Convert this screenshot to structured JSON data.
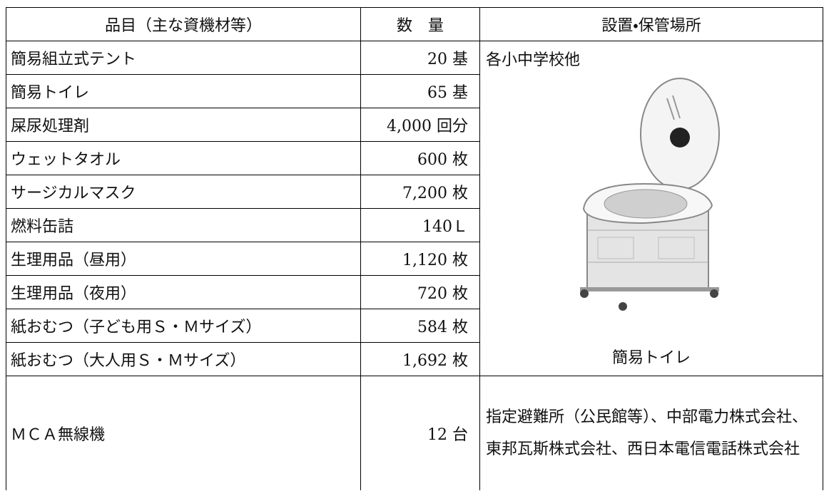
{
  "table": {
    "header": [
      "品目（主な資機材等）",
      "数　量",
      "設置・保管場所"
    ],
    "rows": [
      {
        "item": "簡易組立式テント",
        "quantity": "20 基"
      },
      {
        "item": "簡易トイレ",
        "quantity": "65 基"
      },
      {
        "item": "屎尿処理剤",
        "quantity": "4,000 回分"
      },
      {
        "item": "ウェットタオル",
        "quantity": "600 枚"
      },
      {
        "item": "サージカルマスク",
        "quantity": "7,200 枚"
      },
      {
        "item": "燃料缶詰",
        "quantity": "140Ｌ"
      },
      {
        "item": "生理用品（昼用）",
        "quantity": "1,120 枚"
      },
      {
        "item": "生理用品（夜用）",
        "quantity": "720 枚"
      },
      {
        "item": "紙おむつ（子ども用Ｓ・Ｍサイズ）",
        "quantity": "584 枚"
      },
      {
        "item": "紙おむつ（大人用Ｓ・Ｍサイズ）",
        "quantity": "1,692 枚"
      }
    ],
    "shared_location": {
      "text": "各小中学校他",
      "image_caption": "簡易トイレ"
    },
    "last_row": {
      "item": "ＭＣＡ無線機",
      "quantity": "12 台",
      "location": "指定避難所（公民館等）、中部電力株式会社、東邦瓦斯株式会社、西日本電信電話株式会社"
    }
  }
}
